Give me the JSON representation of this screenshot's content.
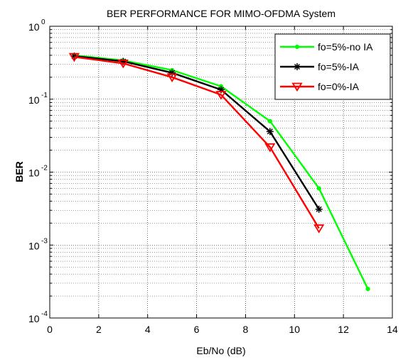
{
  "chart_data": {
    "type": "line",
    "title": "BER PERFORMANCE FOR MIMO-OFDMA System",
    "xlabel": "Eb/No (dB)",
    "ylabel": "BER",
    "xlim": [
      0,
      14
    ],
    "ylim": [
      0.0001,
      1
    ],
    "yscale": "log",
    "grid": true,
    "legend_position": "top-right",
    "x_ticks": [
      "0",
      "2",
      "4",
      "6",
      "8",
      "10",
      "12",
      "14"
    ],
    "y_ticks": [
      {
        "base": "10",
        "exp": "0"
      },
      {
        "base": "10",
        "exp": "-1"
      },
      {
        "base": "10",
        "exp": "-2"
      },
      {
        "base": "10",
        "exp": "-3"
      },
      {
        "base": "10",
        "exp": "-4"
      }
    ],
    "series": [
      {
        "name": "fo=5%-no IA",
        "color": "#00ff00",
        "marker": "dot",
        "x": [
          1,
          3,
          5,
          7,
          9,
          11,
          13
        ],
        "y": [
          0.4,
          0.34,
          0.25,
          0.15,
          0.05,
          0.006,
          0.00025
        ]
      },
      {
        "name": "fo=5%-IA",
        "color": "#000000",
        "marker": "star",
        "x": [
          1,
          3,
          5,
          7,
          9,
          11
        ],
        "y": [
          0.39,
          0.33,
          0.23,
          0.135,
          0.036,
          0.0031
        ]
      },
      {
        "name": "fo=0%-IA",
        "color": "#ff0000",
        "marker": "triangle-down",
        "x": [
          1,
          3,
          5,
          7,
          9,
          11
        ],
        "y": [
          0.38,
          0.31,
          0.2,
          0.115,
          0.022,
          0.0017
        ]
      }
    ]
  }
}
